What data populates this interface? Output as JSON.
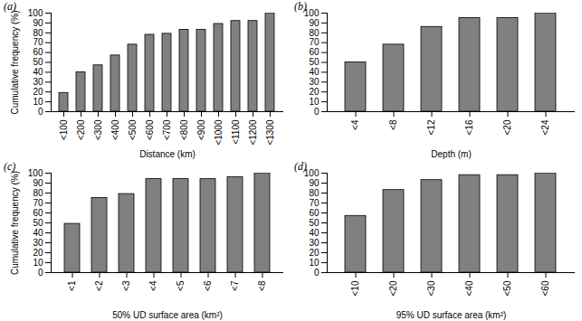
{
  "chart_data": [
    {
      "type": "bar",
      "title": "(a)",
      "x_label": "Distance (km)",
      "y_label": "Cumulative frequency (%)",
      "categories": [
        "<100",
        "<200",
        "<300",
        "<400",
        "<500",
        "<600",
        "<700",
        "<800",
        "<900",
        "<1000",
        "<1100",
        "<1200",
        "<1300"
      ],
      "values": [
        19,
        40,
        47,
        57,
        68,
        78,
        79,
        83,
        83,
        89,
        92,
        92,
        100
      ],
      "color": "#808080",
      "ylim": [
        0,
        100
      ],
      "yticks": [
        0,
        10,
        20,
        30,
        40,
        50,
        60,
        70,
        80,
        90,
        100
      ],
      "grid": false
    },
    {
      "type": "bar",
      "title": "(b)",
      "x_label": "Depth (m)",
      "categories": [
        "<4",
        "<8",
        "<12",
        "<16",
        "<20",
        "<24"
      ],
      "values": [
        50,
        68,
        86,
        95,
        95,
        100
      ],
      "color": "#808080",
      "ylim": [
        0,
        100
      ],
      "yticks": [
        0,
        10,
        20,
        30,
        40,
        50,
        60,
        70,
        80,
        90,
        100
      ],
      "grid": false
    },
    {
      "type": "bar",
      "title": "(c)",
      "x_label": "50% UD surface area (km²)",
      "y_label": "Cumulative frequency (%)",
      "categories": [
        "<1",
        "<2",
        "<3",
        "<4",
        "<5",
        "<6",
        "<7",
        "<8"
      ],
      "values": [
        49,
        75,
        79,
        94,
        94,
        94,
        96,
        100
      ],
      "color": "#808080",
      "ylim": [
        0,
        100
      ],
      "yticks": [
        0,
        10,
        20,
        30,
        40,
        50,
        60,
        70,
        80,
        90,
        100
      ],
      "grid": false
    },
    {
      "type": "bar",
      "title": "(d)",
      "x_label": "95% UD surface area (km²)",
      "categories": [
        "<10",
        "<20",
        "<30",
        "<40",
        "<50",
        "<60"
      ],
      "values": [
        57,
        83,
        93,
        98,
        98,
        100
      ],
      "color": "#808080",
      "ylim": [
        0,
        100
      ],
      "yticks": [
        0,
        10,
        20,
        30,
        40,
        50,
        60,
        70,
        80,
        90,
        100
      ],
      "grid": false
    }
  ]
}
